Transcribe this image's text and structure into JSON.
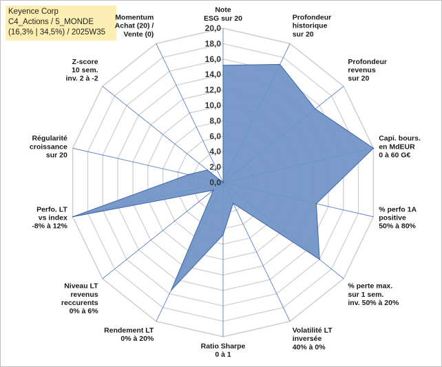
{
  "title_box": {
    "line1": "Keyence Corp",
    "line2": "C4_Actions / 5_MONDE",
    "line3": "(16,3% | 34,5%) / 2025W35"
  },
  "chart_data": {
    "type": "radar",
    "title": "",
    "rmin": 0,
    "rmax": 20,
    "ticks": [
      "0,0",
      "2,0",
      "4,0",
      "6,0",
      "8,0",
      "10,0",
      "12,0",
      "14,0",
      "16,0",
      "18,0",
      "20,0"
    ],
    "axes": [
      [
        "Note",
        "ESG sur 20"
      ],
      [
        "Profondeur",
        "historique",
        "sur 20"
      ],
      [
        "Profondeur",
        "revenus",
        "sur 20"
      ],
      [
        "Capi. bours.",
        "en MdEUR",
        "0 à 60 G€"
      ],
      [
        "% perfo 1A",
        "positive",
        "50% à 80%"
      ],
      [
        "% perte max.",
        "sur 1 sem.",
        "inv. 50% à 20%"
      ],
      [
        "Volatilité LT",
        "inversée",
        "40% à 0%"
      ],
      [
        "Ratio Sharpe",
        "0 à 1"
      ],
      [
        "Rendement LT",
        "0% à 20%"
      ],
      [
        "Niveau LT",
        "revenus",
        "reccurents",
        "0% à 6%"
      ],
      [
        "Perfo. LT",
        "vs index",
        "-8% à 12%"
      ],
      [
        "Régularité",
        "croissance",
        "sur 20"
      ],
      [
        "Z-score",
        "10 sem.",
        "inv. 2 à -2"
      ],
      [
        "Momentum",
        "Achat (20) /",
        "Vente (0)"
      ]
    ],
    "series": [
      {
        "values": [
          15.2,
          17.0,
          15.3,
          20.0,
          12.4,
          16.0,
          3.0,
          6.8,
          15.5,
          1.6,
          20.0,
          4.6,
          2.6,
          0.0
        ]
      }
    ],
    "colors": {
      "fill": "#6f93c6",
      "stroke": "#3c64a6",
      "grid": "#d0d0d0",
      "spoke": "#4472c4"
    }
  }
}
